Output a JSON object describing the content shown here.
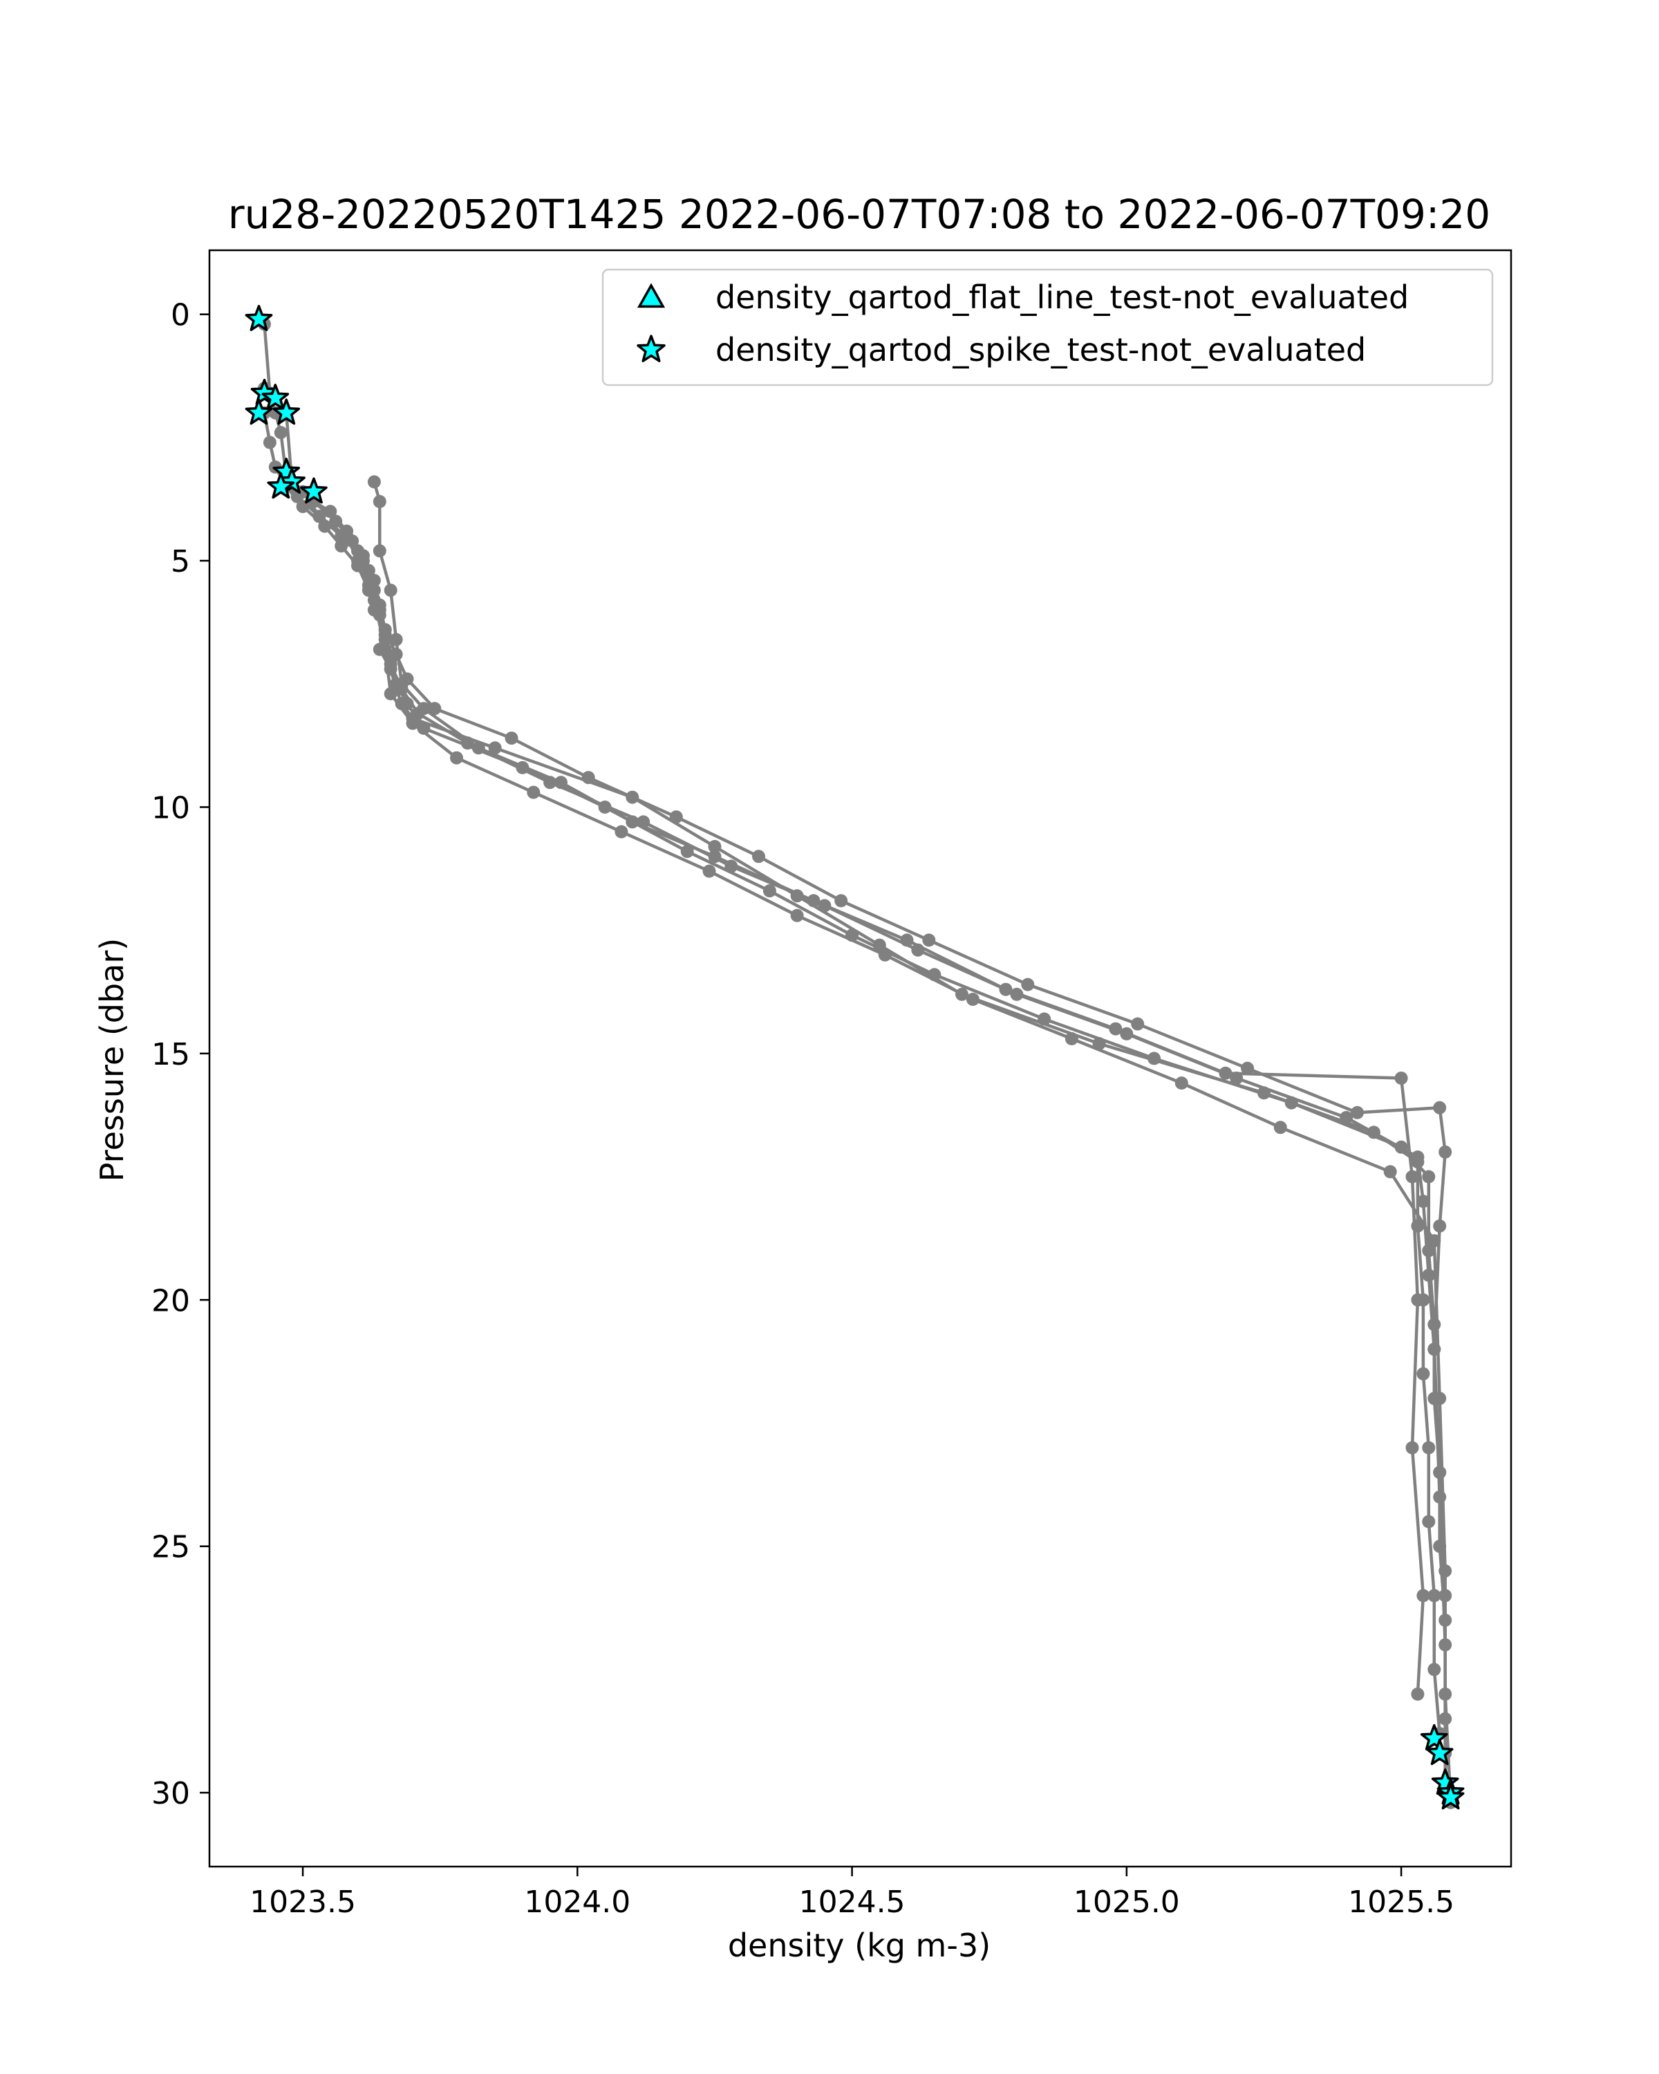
{
  "chart_data": {
    "type": "scatter",
    "title": "ru28-20220520T1425 2022-06-07T07:08 to 2022-06-07T09:20",
    "xlabel": "density (kg m-3)",
    "ylabel": "Pressure (dbar)",
    "xlim": [
      1023.33,
      1025.7
    ],
    "ylim": [
      31.5,
      -1.3
    ],
    "y_inverted": true,
    "x_ticks": [
      1023.5,
      1024.0,
      1024.5,
      1025.0,
      1025.5
    ],
    "x_tick_labels": [
      "1023.5",
      "1024.0",
      "1024.5",
      "1025.0",
      "1025.5"
    ],
    "y_ticks": [
      0,
      5,
      10,
      15,
      20,
      25,
      30
    ],
    "y_tick_labels": [
      "0",
      "5",
      "10",
      "15",
      "20",
      "25",
      "30"
    ],
    "grid": false,
    "legend_position": "top-right",
    "colors": {
      "profile_line": "#808080",
      "flag_fill": "#00ffff",
      "flag_edge": "#000000"
    },
    "profile_series": [
      {
        "x": [
          1023.43,
          1023.44,
          1023.45,
          1023.46,
          1023.47,
          1023.49,
          1023.55,
          1023.58,
          1023.6,
          1023.62,
          1023.63,
          1023.64,
          1023.65,
          1023.64,
          1023.66,
          1023.67,
          1023.68,
          1023.7,
          1023.85,
          1024.1,
          1024.25,
          1024.4,
          1024.55,
          1024.7,
          1024.95,
          1025.25,
          1025.45,
          1025.53,
          1025.53,
          1025.54,
          1025.54,
          1025.55,
          1025.55,
          1025.56,
          1025.56,
          1025.57
        ],
        "y": [
          0.2,
          1.6,
          2.0,
          2.4,
          3.3,
          3.6,
          4.0,
          4.4,
          4.8,
          5.2,
          5.6,
          6.0,
          6.4,
          6.8,
          7.2,
          7.6,
          7.9,
          8.2,
          8.8,
          9.8,
          10.8,
          11.8,
          12.8,
          13.8,
          14.8,
          15.8,
          16.6,
          17.2,
          18.5,
          20.0,
          21.5,
          23.0,
          24.5,
          26.0,
          27.5,
          28.8
        ]
      },
      {
        "x": [
          1023.43,
          1023.45,
          1023.47,
          1023.48,
          1023.52,
          1023.56,
          1023.59,
          1023.61,
          1023.62,
          1023.63,
          1023.65,
          1023.66,
          1023.67,
          1023.69,
          1023.72,
          1023.9,
          1024.05,
          1024.2,
          1024.35,
          1024.5,
          1024.65,
          1024.85,
          1025.05,
          1025.3,
          1025.5,
          1025.55,
          1025.55,
          1025.56,
          1025.56,
          1025.57,
          1025.57,
          1025.58,
          1025.58
        ],
        "y": [
          1.5,
          1.7,
          2.0,
          3.4,
          3.8,
          4.2,
          4.6,
          5.0,
          5.5,
          6.0,
          6.5,
          7.0,
          7.5,
          7.9,
          8.4,
          9.2,
          10.0,
          10.9,
          11.7,
          12.6,
          13.4,
          14.3,
          15.1,
          16.0,
          16.9,
          17.5,
          19.0,
          20.5,
          22.0,
          23.5,
          25.0,
          26.5,
          29.2
        ]
      },
      {
        "x": [
          1023.43,
          1023.44,
          1023.45,
          1023.47,
          1023.5,
          1023.54,
          1023.57,
          1023.6,
          1023.62,
          1023.64,
          1023.65,
          1023.66,
          1023.68,
          1023.71,
          1023.8,
          1023.95,
          1024.12,
          1024.28,
          1024.45,
          1024.62,
          1024.8,
          1025.0,
          1025.2,
          1025.4,
          1025.53,
          1025.54,
          1025.55,
          1025.56,
          1025.57,
          1025.58,
          1025.58,
          1025.59
        ],
        "y": [
          2.0,
          2.6,
          3.1,
          3.5,
          3.9,
          4.3,
          4.7,
          5.1,
          5.6,
          6.1,
          6.6,
          7.1,
          7.6,
          8.1,
          8.7,
          9.5,
          10.3,
          11.2,
          12.0,
          12.9,
          13.8,
          14.6,
          15.5,
          16.3,
          17.1,
          18.0,
          19.5,
          21.0,
          23.5,
          26.0,
          28.5,
          30.1
        ]
      },
      {
        "x": [
          1023.47,
          1023.49,
          1023.53,
          1023.57,
          1023.61,
          1023.63,
          1023.64,
          1023.65,
          1023.67,
          1023.69,
          1023.74,
          1023.88,
          1024.02,
          1024.18,
          1024.33,
          1024.48,
          1024.64,
          1024.82,
          1025.02,
          1025.22,
          1025.42,
          1025.57,
          1025.58,
          1025.57,
          1025.56,
          1025.57,
          1025.58,
          1025.58
        ],
        "y": [
          3.3,
          3.7,
          4.1,
          4.5,
          4.9,
          5.4,
          5.9,
          6.4,
          6.9,
          7.4,
          8.0,
          8.6,
          9.4,
          10.2,
          11.0,
          11.9,
          12.7,
          13.6,
          14.4,
          15.3,
          16.2,
          16.1,
          17.0,
          18.5,
          21.0,
          24.0,
          27.0,
          29.8
        ]
      },
      {
        "x": [
          1023.5,
          1023.53,
          1023.58,
          1023.6,
          1023.63,
          1023.65,
          1023.66,
          1023.7,
          1023.78,
          1023.92,
          1024.08,
          1024.24,
          1024.4,
          1024.56,
          1024.72,
          1024.9,
          1025.1,
          1025.28,
          1025.48,
          1025.56,
          1025.57,
          1025.58,
          1025.58,
          1025.59
        ],
        "y": [
          3.6,
          4.1,
          4.5,
          5.0,
          5.8,
          6.8,
          7.7,
          8.3,
          9.0,
          9.7,
          10.5,
          11.3,
          12.2,
          13.0,
          13.9,
          14.7,
          15.6,
          16.5,
          17.4,
          18.8,
          22.0,
          25.5,
          28.0,
          30.2
        ]
      },
      {
        "x": [
          1023.63,
          1023.64,
          1023.64,
          1023.66,
          1023.67,
          1023.68,
          1023.72,
          1023.82,
          1023.97,
          1024.1,
          1024.25,
          1024.43,
          1024.6,
          1024.78,
          1024.98,
          1025.18,
          1025.5,
          1025.52,
          1025.53,
          1025.52,
          1025.54,
          1025.53
        ],
        "y": [
          3.4,
          3.8,
          4.8,
          5.6,
          6.6,
          7.5,
          8.0,
          8.8,
          9.5,
          10.3,
          11.0,
          11.9,
          12.7,
          13.7,
          14.5,
          15.4,
          15.5,
          17.5,
          20.0,
          23.0,
          26.0,
          28.0
        ]
      }
    ],
    "flag_series": [
      {
        "name": "density_qartod_flat_line_test-not_evaluated",
        "marker": "triangle",
        "x": [],
        "y": []
      },
      {
        "name": "density_qartod_spike_test-not_evaluated",
        "marker": "star",
        "x": [
          1023.42,
          1023.43,
          1023.45,
          1023.47,
          1023.42,
          1023.47,
          1023.48,
          1023.46,
          1023.52,
          1025.56,
          1025.57,
          1025.58,
          1025.59,
          1025.59
        ],
        "y": [
          0.1,
          1.6,
          1.7,
          2.0,
          2.0,
          3.2,
          3.4,
          3.5,
          3.6,
          28.9,
          29.2,
          29.8,
          30.0,
          30.1
        ]
      }
    ]
  }
}
